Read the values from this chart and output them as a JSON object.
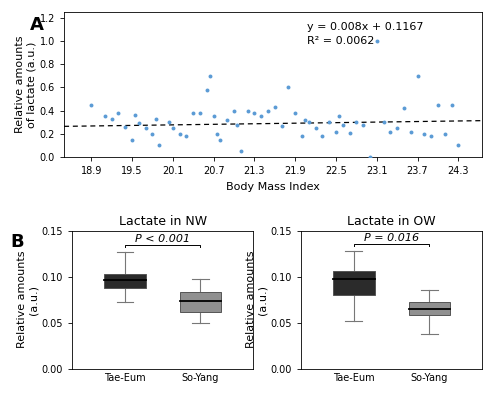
{
  "panel_A": {
    "xlabel": "Body Mass Index",
    "ylabel": "Relative amounts\nof lactate (a.u.)",
    "xlim": [
      18.5,
      24.65
    ],
    "ylim": [
      0.0,
      1.25
    ],
    "xticks": [
      18.9,
      19.5,
      20.1,
      20.7,
      21.3,
      21.9,
      22.5,
      23.1,
      23.7,
      24.3
    ],
    "yticks": [
      0.0,
      0.2,
      0.4,
      0.6,
      0.8,
      1.0,
      1.2
    ],
    "eq_text": "y = 0.008x + 0.1167",
    "r2_text": "R² = 0.0062",
    "slope": 0.008,
    "intercept": 0.1167,
    "scatter_color": "#5B9BD5",
    "scatter_size": 8,
    "scatter_x": [
      18.9,
      19.1,
      19.2,
      19.3,
      19.4,
      19.5,
      19.55,
      19.6,
      19.7,
      19.8,
      19.85,
      19.9,
      20.05,
      20.1,
      20.2,
      20.3,
      20.4,
      20.5,
      20.6,
      20.65,
      20.7,
      20.75,
      20.8,
      20.9,
      21.0,
      21.05,
      21.1,
      21.2,
      21.3,
      21.4,
      21.5,
      21.6,
      21.7,
      21.8,
      21.9,
      22.0,
      22.05,
      22.1,
      22.2,
      22.3,
      22.4,
      22.5,
      22.55,
      22.6,
      22.7,
      22.8,
      22.9,
      23.0,
      23.1,
      23.2,
      23.3,
      23.4,
      23.5,
      23.6,
      23.7,
      23.8,
      23.9,
      24.0,
      24.1,
      24.2,
      24.3
    ],
    "scatter_y": [
      0.45,
      0.35,
      0.33,
      0.38,
      0.26,
      0.15,
      0.36,
      0.29,
      0.25,
      0.2,
      0.33,
      0.1,
      0.3,
      0.25,
      0.2,
      0.18,
      0.38,
      0.38,
      0.58,
      0.7,
      0.35,
      0.2,
      0.15,
      0.32,
      0.4,
      0.28,
      0.05,
      0.4,
      0.38,
      0.35,
      0.4,
      0.43,
      0.27,
      0.6,
      0.38,
      0.18,
      0.32,
      0.3,
      0.25,
      0.18,
      0.3,
      0.22,
      0.35,
      0.28,
      0.21,
      0.3,
      0.28,
      0.0,
      1.0,
      0.3,
      0.22,
      0.25,
      0.42,
      0.22,
      0.7,
      0.2,
      0.18,
      0.45,
      0.2,
      0.45,
      0.1
    ]
  },
  "panel_B_NW": {
    "title": "Lactate in NW",
    "ylabel": "Relative amounts (a.u.)",
    "categories": [
      "Tae-Eum",
      "So-Yang"
    ],
    "ylim": [
      0.0,
      0.15
    ],
    "yticks": [
      0.0,
      0.05,
      0.1,
      0.15
    ],
    "pval_text": "P < 0.001",
    "tae_eum": {
      "median": 0.096,
      "q1": 0.088,
      "q3": 0.103,
      "whislo": 0.072,
      "whishi": 0.127,
      "color": "#2B2B2B"
    },
    "so_yang": {
      "median": 0.073,
      "q1": 0.061,
      "q3": 0.083,
      "whislo": 0.05,
      "whishi": 0.097,
      "color": "#909090"
    }
  },
  "panel_B_OW": {
    "title": "Lactate in OW",
    "ylabel": "Relative amounts (a.u.)",
    "categories": [
      "Tae-Eum",
      "So-Yang"
    ],
    "ylim": [
      0.0,
      0.15
    ],
    "yticks": [
      0.0,
      0.05,
      0.1,
      0.15
    ],
    "pval_text": "P = 0.016",
    "tae_eum": {
      "median": 0.097,
      "q1": 0.08,
      "q3": 0.106,
      "whislo": 0.052,
      "whishi": 0.128,
      "color": "#2B2B2B"
    },
    "so_yang": {
      "median": 0.065,
      "q1": 0.058,
      "q3": 0.072,
      "whislo": 0.038,
      "whishi": 0.085,
      "color": "#909090"
    }
  },
  "label_fontsize": 13,
  "tick_fontsize": 7,
  "axis_label_fontsize": 8,
  "title_fontsize": 9,
  "pval_fontsize": 8,
  "eq_fontsize": 8
}
